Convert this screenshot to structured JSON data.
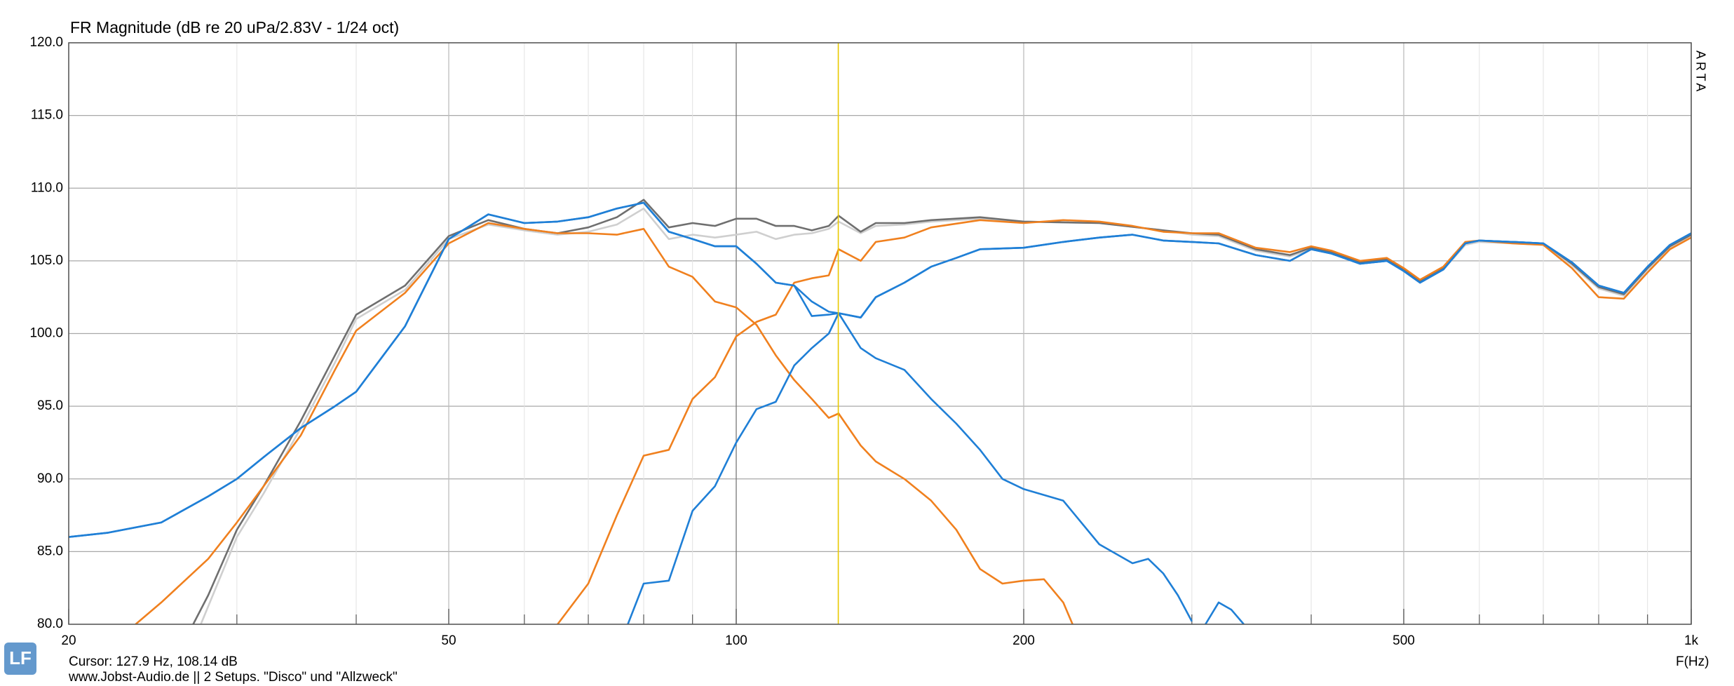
{
  "chart_data": {
    "type": "line",
    "title": "FR Magnitude (dB re 20 uPa/2.83V - 1/24 oct)",
    "brand": "ARTA",
    "logo": "LF",
    "cursor_text": "Cursor: 127.9 Hz, 108.14 dB",
    "cursor_x": 127.9,
    "cursor_color": "#e8c800",
    "footer": "www.Jobst-Audio.de  ||  2 Setups. \"Disco\" und \"Allzweck\"",
    "xlabel": "F(Hz)",
    "xscale": "log",
    "xlim": [
      20,
      1000
    ],
    "ylim": [
      80,
      120
    ],
    "xticks": [
      20,
      50,
      100,
      200,
      500,
      {
        "value": 1000,
        "label": "1k"
      }
    ],
    "xminor": [
      30,
      40,
      60,
      70,
      80,
      90,
      300,
      400,
      600,
      700,
      800,
      900
    ],
    "yticks": [
      {
        "value": 80,
        "label": "80.0"
      },
      {
        "value": 85,
        "label": "85.0"
      },
      {
        "value": 90,
        "label": "90.0"
      },
      {
        "value": 95,
        "label": "95.0"
      },
      {
        "value": 100,
        "label": "100.0"
      },
      {
        "value": 105,
        "label": "105.0"
      },
      {
        "value": 110,
        "label": "110.0"
      },
      {
        "value": 115,
        "label": "115.0"
      },
      {
        "value": 120,
        "label": "120.0"
      }
    ],
    "grid": true,
    "series": [
      {
        "color": "#cfcfcf",
        "x": [
          27.5,
          30,
          32,
          35,
          38,
          40,
          45,
          50,
          55,
          60,
          65,
          70,
          75,
          80,
          85,
          90,
          95,
          100,
          105,
          110,
          115,
          120,
          125,
          128,
          135,
          140,
          150,
          160,
          180,
          200,
          240,
          280,
          300,
          320,
          350,
          380,
          400,
          420,
          450,
          480,
          500,
          520,
          550,
          580,
          600,
          650,
          700,
          750,
          800,
          850,
          900,
          950,
          1000
        ],
        "values": [
          80,
          86,
          89,
          93.5,
          98,
          101,
          103,
          106.5,
          107.5,
          107.1,
          106.8,
          107,
          107.5,
          108.6,
          106.5,
          106.8,
          106.6,
          106.8,
          107,
          106.5,
          106.8,
          106.9,
          107.2,
          107.7,
          106.9,
          107.4,
          107.5,
          107.7,
          107.9,
          107.7,
          107.6,
          107.1,
          106.8,
          106.7,
          105.7,
          105.3,
          105.8,
          105.5,
          104.8,
          105.0,
          104.3,
          103.5,
          104.4,
          106.1,
          106.3,
          106.2,
          106.1,
          104.7,
          103.1,
          102.6,
          104.4,
          105.9,
          106.7
        ]
      },
      {
        "color": "#6f6f6f",
        "x": [
          27,
          28,
          30,
          32,
          35,
          38,
          40,
          45,
          50,
          55,
          60,
          65,
          70,
          75,
          80,
          85,
          90,
          95,
          100,
          105,
          110,
          115,
          120,
          125,
          128,
          135,
          140,
          150,
          160,
          180,
          200,
          240,
          280,
          300,
          320,
          350,
          380,
          400,
          420,
          450,
          480,
          500,
          520,
          550,
          580,
          600,
          650,
          700,
          750,
          800,
          850,
          900,
          950,
          1000
        ],
        "values": [
          80,
          82,
          86.5,
          89.5,
          94,
          98.5,
          101.3,
          103.3,
          106.7,
          107.8,
          107.2,
          106.9,
          107.3,
          108,
          109.2,
          107.3,
          107.6,
          107.4,
          107.9,
          107.9,
          107.4,
          107.4,
          107.1,
          107.4,
          108.1,
          107,
          107.6,
          107.6,
          107.8,
          108,
          107.7,
          107.6,
          107.1,
          106.9,
          106.8,
          105.8,
          105.4,
          105.9,
          105.6,
          104.9,
          105.1,
          104.4,
          103.6,
          104.5,
          106.2,
          106.4,
          106.3,
          106.2,
          104.8,
          103.2,
          102.7,
          104.5,
          106,
          106.8
        ]
      },
      {
        "color": "#f0801e",
        "x": [
          23.5,
          25,
          28,
          30,
          32,
          35,
          38,
          40,
          45,
          50,
          55,
          60,
          65,
          70,
          75,
          80,
          85,
          90,
          95,
          100,
          105,
          110,
          115,
          120,
          125,
          128,
          135,
          140,
          150,
          160,
          170,
          180,
          190,
          200,
          210,
          220,
          225
        ],
        "values": [
          80,
          81.5,
          84.5,
          87,
          89.5,
          93,
          97.5,
          100.2,
          102.8,
          106.2,
          107.6,
          107.2,
          106.9,
          106.9,
          106.8,
          107.2,
          104.6,
          103.9,
          102.2,
          101.8,
          100.6,
          98.5,
          96.8,
          95.5,
          94.2,
          94.5,
          92.3,
          91.2,
          90,
          88.5,
          86.5,
          83.8,
          82.8,
          83,
          83.1,
          81.5,
          80
        ]
      },
      {
        "color": "#f0801e",
        "x": [
          65,
          70,
          75,
          80,
          85,
          90,
          95,
          100,
          105,
          110,
          115,
          120,
          125,
          128,
          135,
          140,
          150,
          160,
          180,
          200,
          220,
          240,
          260,
          280,
          300,
          320,
          350,
          380,
          400,
          420,
          450,
          480,
          500,
          520,
          550,
          580,
          600,
          650,
          700,
          750,
          800,
          850,
          900,
          950,
          1000
        ],
        "values": [
          80,
          82.8,
          87.5,
          91.6,
          92,
          95.5,
          97,
          99.8,
          100.8,
          101.3,
          103.5,
          103.8,
          104,
          105.8,
          105,
          106.3,
          106.6,
          107.3,
          107.8,
          107.6,
          107.8,
          107.7,
          107.4,
          107,
          106.9,
          106.9,
          105.9,
          105.6,
          106,
          105.7,
          105,
          105.2,
          104.5,
          103.7,
          104.6,
          106.3,
          106.4,
          106.2,
          106.1,
          104.5,
          102.5,
          102.4,
          104.2,
          105.8,
          106.6
        ]
      },
      {
        "color": "#1f7fd6",
        "x": [
          20,
          22,
          25,
          28,
          30,
          32,
          35,
          38,
          40,
          45,
          50,
          55,
          60,
          65,
          70,
          75,
          80,
          85,
          90,
          95,
          100,
          105,
          110,
          115,
          120,
          125,
          128,
          135,
          140,
          150,
          160,
          170,
          180,
          190,
          200,
          220,
          240,
          260,
          270,
          280,
          290,
          300,
          null,
          310,
          320,
          330,
          340
        ],
        "values": [
          86,
          86.3,
          87,
          88.8,
          90,
          91.5,
          93.5,
          95,
          96,
          100.5,
          106.5,
          108.2,
          107.6,
          107.7,
          108,
          108.6,
          109,
          107,
          106.5,
          106,
          106,
          104.8,
          103.5,
          103.3,
          102.2,
          101.5,
          101.4,
          99,
          98.3,
          97.5,
          95.5,
          93.8,
          92,
          90,
          89.3,
          88.5,
          85.5,
          84.2,
          84.5,
          83.5,
          82,
          80.2,
          null,
          80,
          81.5,
          81,
          80
        ]
      },
      {
        "color": "#1f7fd6",
        "x": [
          77,
          80,
          85,
          90,
          95,
          100,
          105,
          110,
          115,
          120,
          125,
          128,
          135,
          140,
          150,
          160,
          170,
          180,
          200,
          220,
          240,
          260,
          280,
          300,
          320,
          350,
          380,
          400,
          420,
          450,
          480,
          500,
          520,
          550,
          580,
          600,
          650,
          700,
          750,
          800,
          850,
          900,
          950,
          1000
        ],
        "values": [
          80,
          82.8,
          83,
          87.8,
          89.5,
          92.5,
          94.8,
          95.3,
          97.8,
          99,
          100,
          101.4,
          101.1,
          102.5,
          103.5,
          104.6,
          105.2,
          105.8,
          105.9,
          106.3,
          106.6,
          106.8,
          106.4,
          106.3,
          106.2,
          105.4,
          105,
          105.8,
          105.5,
          104.8,
          105,
          104.3,
          103.5,
          104.4,
          106.2,
          106.4,
          106.3,
          106.2,
          104.9,
          103.3,
          102.8,
          104.6,
          106.1,
          106.9
        ]
      },
      {
        "color": "#1f7fd6",
        "x": [
          20,
          22,
          25,
          28,
          30,
          32,
          35,
          38,
          40,
          45,
          50,
          55,
          60,
          65,
          70,
          75,
          80,
          85,
          90,
          95,
          100,
          105,
          110,
          115,
          120,
          125,
          128,
          135,
          140,
          150,
          160,
          170,
          180,
          200,
          220,
          240,
          260,
          280,
          300,
          320,
          350,
          380,
          400,
          420,
          450,
          480,
          500,
          520,
          550,
          580,
          600,
          650,
          700,
          750,
          800,
          850,
          900,
          950,
          1000
        ],
        "values": [
          86,
          86.3,
          87,
          88.8,
          90,
          91.5,
          93.5,
          95,
          96,
          100.5,
          106.5,
          108.2,
          107.6,
          107.7,
          108,
          108.6,
          109,
          107,
          106.5,
          106,
          106,
          104.8,
          103.5,
          103.3,
          101.2,
          101.3,
          101.4,
          101.1,
          102.5,
          103.5,
          104.6,
          105.2,
          105.8,
          105.9,
          106.3,
          106.6,
          106.8,
          106.4,
          106.3,
          106.2,
          105.4,
          105,
          105.8,
          105.5,
          104.8,
          105,
          104.3,
          103.5,
          104.4,
          106.2,
          106.4,
          106.3,
          106.2,
          104.9,
          103.3,
          102.8,
          104.6,
          106.1,
          106.9
        ]
      }
    ]
  }
}
